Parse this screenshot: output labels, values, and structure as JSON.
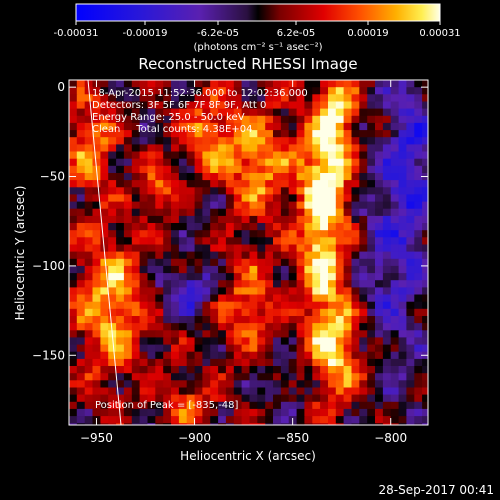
{
  "colorbar": {
    "ticks": [
      "-0.00031",
      "-0.00019",
      "-6.2e-05",
      "6.2e-05",
      "0.00019",
      "0.00031"
    ],
    "units_label": "(photons cm⁻² s⁻¹ asec⁻²)",
    "range": [
      -0.00031,
      0.00031
    ]
  },
  "header": {
    "lines": [
      "18-Apr-2015 11:52:36.000 to 12:02:36.000",
      "Detectors: 3F 5F 6F 7F 8F 9F, Att 0",
      "Energy Range: 25.0 - 50.0 keV",
      "Clean     Total counts: 4.38E+04"
    ],
    "peak_label": "Position of Peak = [-835,-48]"
  },
  "footer": {
    "timestamp": "28-Sep-2017 00:41"
  },
  "chart_data": {
    "type": "heatmap",
    "title": "Reconstructed RHESSI Image",
    "xlabel": "Heliocentric X (arcsec)",
    "ylabel": "Heliocentric Y (arcsec)",
    "xlim": [
      -964,
      -781
    ],
    "ylim": [
      -189,
      4
    ],
    "x_ticks": [
      -950,
      -900,
      -850,
      -800
    ],
    "y_ticks": [
      0,
      -50,
      -100,
      -150
    ],
    "x_tick_labels": [
      "−950",
      "−900",
      "−850",
      "−800"
    ],
    "y_tick_labels": [
      "0",
      "−50",
      "−100",
      "−150"
    ],
    "grid": false,
    "colormap": "rhessi-blue-purple-red-yellow-white",
    "peak_position": [
      -835,
      -48
    ],
    "grid_step_arcsec": 4,
    "features": [
      {
        "x": -835,
        "y": -48,
        "sx": 9,
        "sy": 22,
        "amp": 1.0
      },
      {
        "x": -830,
        "y": -10,
        "sx": 7,
        "sy": 14,
        "amp": 0.8
      },
      {
        "x": -838,
        "y": -95,
        "sx": 8,
        "sy": 24,
        "amp": 0.75
      },
      {
        "x": -830,
        "y": -145,
        "sx": 9,
        "sy": 22,
        "amp": 0.8
      },
      {
        "x": -870,
        "y": -40,
        "sx": 11,
        "sy": 20,
        "amp": 0.7
      },
      {
        "x": -895,
        "y": -25,
        "sx": 9,
        "sy": 14,
        "amp": 0.65
      },
      {
        "x": -875,
        "y": -120,
        "sx": 10,
        "sy": 18,
        "amp": 0.55
      },
      {
        "x": -945,
        "y": -120,
        "sx": 12,
        "sy": 28,
        "amp": 0.75
      },
      {
        "x": -955,
        "y": -30,
        "sx": 8,
        "sy": 18,
        "amp": 0.65
      },
      {
        "x": -920,
        "y": -55,
        "sx": 7,
        "sy": 10,
        "amp": 0.5
      },
      {
        "x": -905,
        "y": -175,
        "sx": 10,
        "sy": 10,
        "amp": 0.45
      },
      {
        "x": -905,
        "y": -112,
        "sx": 9,
        "sy": 9,
        "amp": -0.6
      },
      {
        "x": -800,
        "y": -90,
        "sx": 12,
        "sy": 50,
        "amp": -0.5
      },
      {
        "x": -790,
        "y": -30,
        "sx": 8,
        "sy": 30,
        "amp": -0.45
      },
      {
        "x": -855,
        "y": -165,
        "sx": 7,
        "sy": 8,
        "amp": -0.3
      }
    ]
  }
}
